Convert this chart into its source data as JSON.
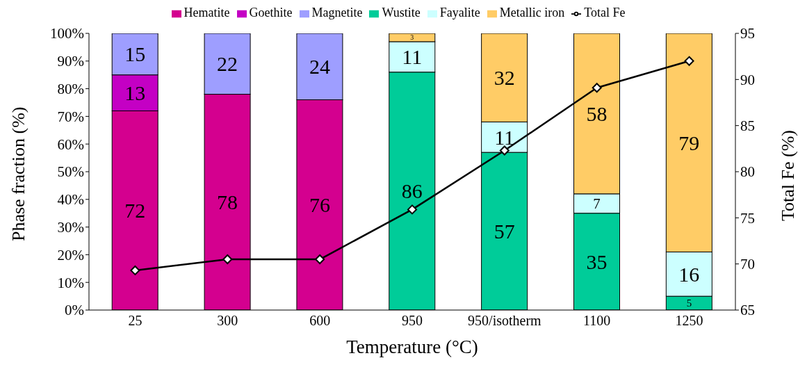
{
  "chart_data": {
    "type": "bar",
    "stacked": true,
    "xlabel": "Temperature (°C)",
    "ylabel": "Phase fraction (%)",
    "y2label": "Total Fe (%)",
    "categories": [
      "25",
      "300",
      "600",
      "950",
      "950/isotherm",
      "1100",
      "1250"
    ],
    "series": [
      {
        "name": "Hematite",
        "color": "#d4008f",
        "values": [
          72,
          78,
          76,
          0,
          0,
          0,
          0
        ],
        "value_labels": [
          "72",
          "78",
          "76",
          null,
          null,
          null,
          null
        ]
      },
      {
        "name": "Goethite",
        "color": "#c400c4",
        "values": [
          13,
          0,
          0,
          0,
          0,
          0,
          0
        ],
        "value_labels": [
          "13",
          null,
          null,
          null,
          null,
          null,
          null
        ]
      },
      {
        "name": "Magnetite",
        "color": "#9e9eff",
        "values": [
          15,
          22,
          24,
          0,
          0,
          0,
          0
        ],
        "value_labels": [
          "15",
          "22",
          "24",
          null,
          null,
          null,
          null
        ]
      },
      {
        "name": "Wustite",
        "color": "#00cc99",
        "values": [
          0,
          0,
          0,
          86,
          57,
          35,
          5
        ],
        "value_labels": [
          null,
          null,
          null,
          "86",
          "57",
          "35",
          "5"
        ]
      },
      {
        "name": "Fayalite",
        "color": "#ccffff",
        "values": [
          0,
          0,
          0,
          11,
          11,
          7,
          16
        ],
        "value_labels": [
          null,
          null,
          null,
          "11",
          "11",
          "7",
          "16"
        ]
      },
      {
        "name": "Metallic iron",
        "color": "#ffcc66",
        "values": [
          0,
          0,
          0,
          3,
          32,
          58,
          79
        ],
        "value_labels": [
          null,
          null,
          null,
          "3",
          "32",
          "58",
          "79"
        ]
      },
      {
        "name": "Total Fe",
        "type": "line",
        "axis": "y2",
        "color": "#000000",
        "marker": "diamond",
        "values": [
          69.3,
          70.5,
          70.5,
          75.9,
          82.3,
          89.1,
          92.0
        ]
      }
    ],
    "ylim": [
      0,
      100
    ],
    "yticks": [
      {
        "value": 0,
        "label": "0%"
      },
      {
        "value": 10,
        "label": "10%"
      },
      {
        "value": 20,
        "label": "20%"
      },
      {
        "value": 30,
        "label": "30%"
      },
      {
        "value": 40,
        "label": "40%"
      },
      {
        "value": 50,
        "label": "50%"
      },
      {
        "value": 60,
        "label": "60%"
      },
      {
        "value": 70,
        "label": "70%"
      },
      {
        "value": 80,
        "label": "80%"
      },
      {
        "value": 90,
        "label": "90%"
      },
      {
        "value": 100,
        "label": "100%"
      }
    ],
    "y2lim": [
      65,
      95
    ],
    "y2ticks": [
      65,
      70,
      75,
      80,
      85,
      90,
      95
    ],
    "grid": false,
    "legend": "top"
  }
}
